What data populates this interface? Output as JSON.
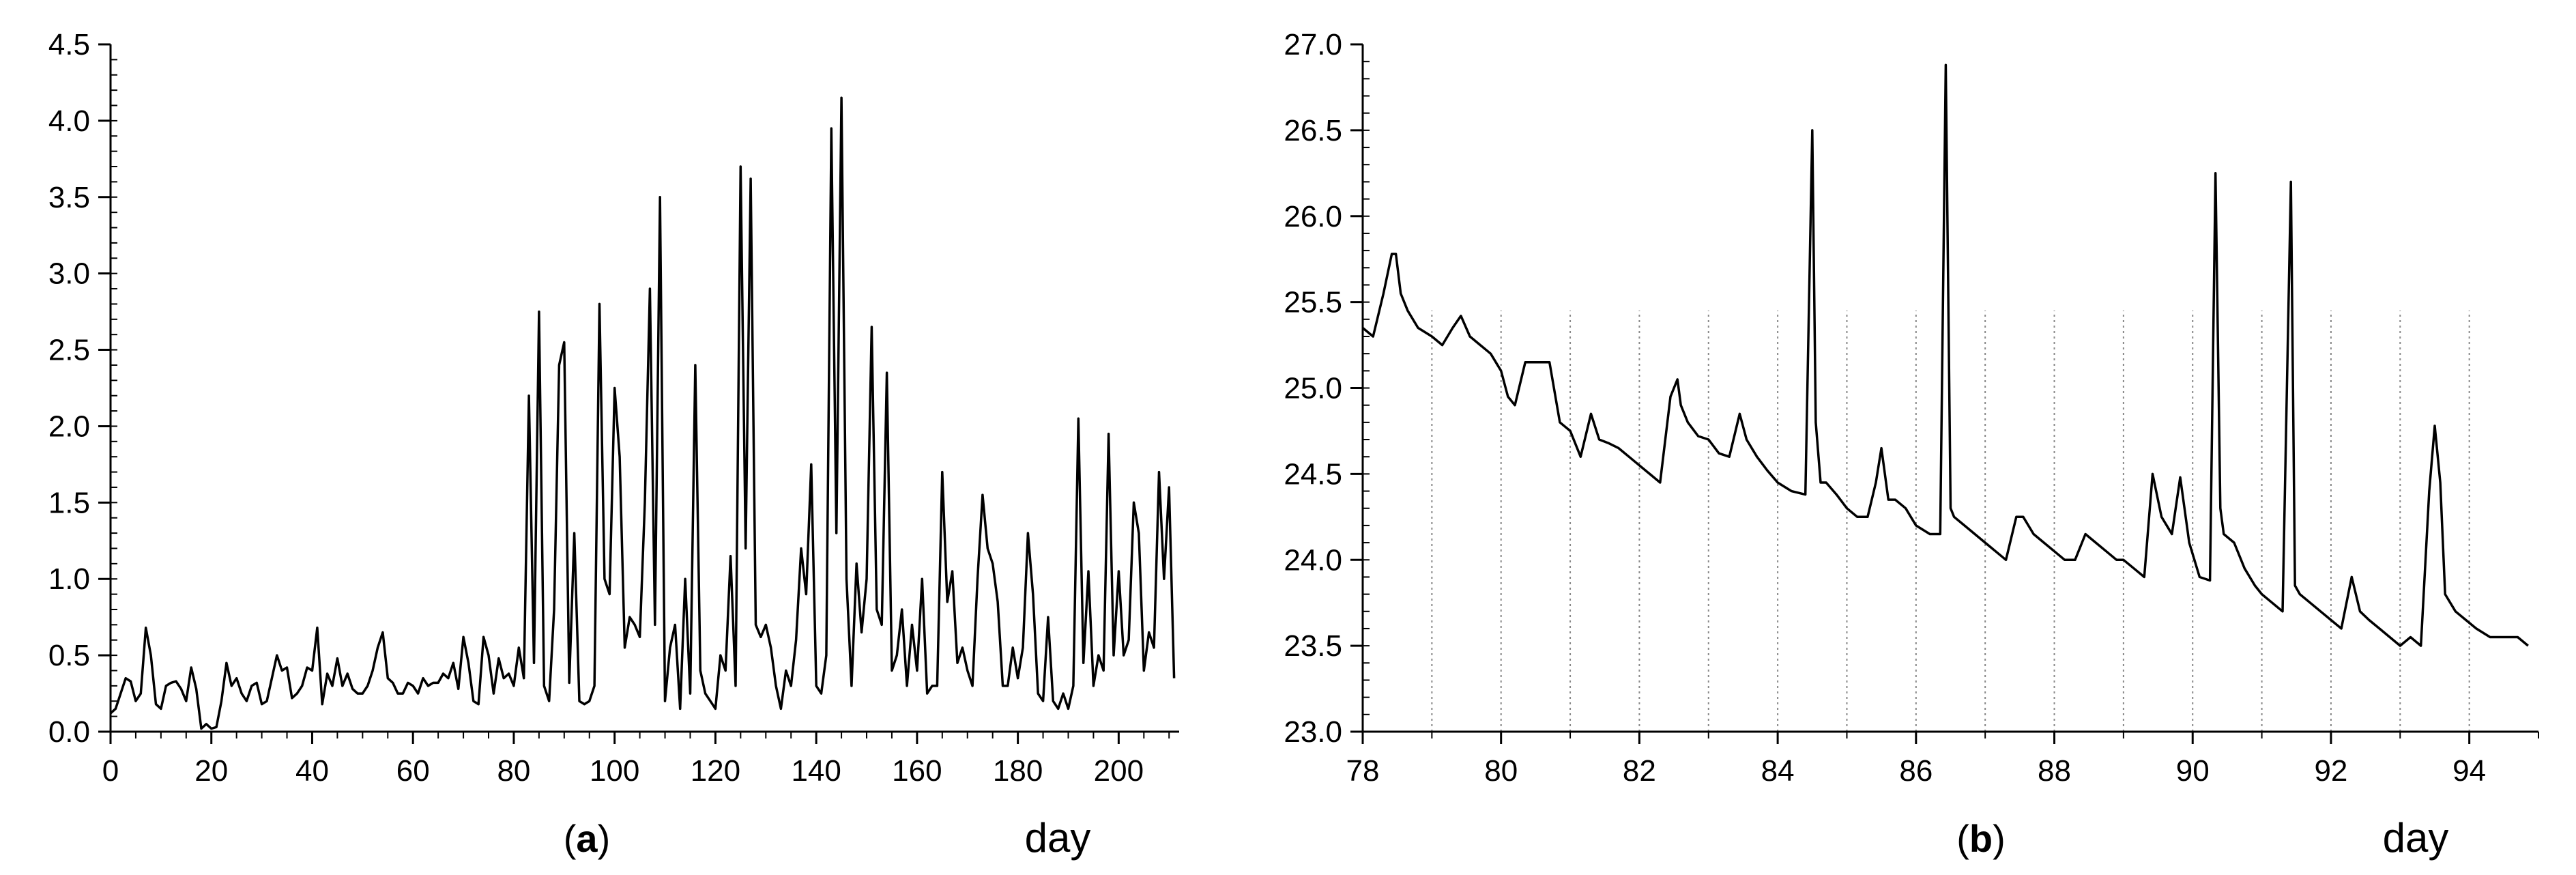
{
  "chart_data": [
    {
      "type": "line",
      "panel_label": "a",
      "xlabel": "day",
      "ylabel": "",
      "xlim": [
        0,
        212
      ],
      "ylim": [
        0,
        4.5
      ],
      "x_ticks": [
        "0",
        "20",
        "40",
        "60",
        "80",
        "100",
        "120",
        "140",
        "160",
        "180",
        "200"
      ],
      "y_ticks": [
        "0.0",
        "0.5",
        "1.0",
        "1.5",
        "2.0",
        "2.5",
        "3.0",
        "3.5",
        "4.0",
        "4.5"
      ],
      "grid": false,
      "series": [
        {
          "x": [
            0,
            1,
            2,
            3,
            4,
            5,
            6,
            7,
            8,
            9,
            10,
            11,
            12,
            13,
            14,
            15,
            16,
            17,
            18,
            19,
            20,
            21,
            22,
            23,
            24,
            25,
            26,
            27,
            28,
            29,
            30,
            31,
            32,
            33,
            34,
            35,
            36,
            37,
            38,
            39,
            40,
            41,
            42,
            43,
            44,
            45,
            46,
            47,
            48,
            49,
            50,
            51,
            52,
            53,
            54,
            55,
            56,
            57,
            58,
            59,
            60,
            61,
            62,
            63,
            64,
            65,
            66,
            67,
            68,
            69,
            70,
            71,
            72,
            73,
            74,
            75,
            76,
            77,
            78,
            79,
            80,
            81,
            82,
            83,
            84,
            85,
            86,
            87,
            88,
            89,
            90,
            91,
            92,
            93,
            94,
            95,
            96,
            97,
            98,
            99,
            100,
            101,
            102,
            103,
            104,
            105,
            106,
            107,
            108,
            109,
            110,
            111,
            112,
            113,
            114,
            115,
            116,
            117,
            118,
            119,
            120,
            121,
            122,
            123,
            124,
            125,
            126,
            127,
            128,
            129,
            130,
            131,
            132,
            133,
            134,
            135,
            136,
            137,
            138,
            139,
            140,
            141,
            142,
            143,
            144,
            145,
            146,
            147,
            148,
            149,
            150,
            151,
            152,
            153,
            154,
            155,
            156,
            157,
            158,
            159,
            160,
            161,
            162,
            163,
            164,
            165,
            166,
            167,
            168,
            169,
            170,
            171,
            172,
            173,
            174,
            175,
            176,
            177,
            178,
            179,
            180,
            181,
            182,
            183,
            184,
            185,
            186,
            187,
            188,
            189,
            190,
            191,
            192,
            193,
            194,
            195,
            196,
            197,
            198,
            199,
            200,
            201,
            202,
            203,
            204,
            205,
            206,
            207,
            208,
            209,
            210,
            211
          ],
          "y": [
            0.12,
            0.15,
            0.25,
            0.35,
            0.33,
            0.2,
            0.25,
            0.68,
            0.5,
            0.18,
            0.15,
            0.3,
            0.32,
            0.33,
            0.28,
            0.2,
            0.42,
            0.28,
            0.02,
            0.05,
            0.02,
            0.03,
            0.2,
            0.45,
            0.3,
            0.35,
            0.25,
            0.2,
            0.3,
            0.32,
            0.18,
            0.2,
            0.35,
            0.5,
            0.4,
            0.42,
            0.22,
            0.25,
            0.3,
            0.42,
            0.4,
            0.68,
            0.18,
            0.38,
            0.3,
            0.48,
            0.3,
            0.38,
            0.28,
            0.25,
            0.25,
            0.3,
            0.4,
            0.55,
            0.65,
            0.35,
            0.32,
            0.25,
            0.25,
            0.32,
            0.3,
            0.25,
            0.35,
            0.3,
            0.32,
            0.32,
            0.38,
            0.35,
            0.45,
            0.28,
            0.62,
            0.45,
            0.2,
            0.18,
            0.62,
            0.5,
            0.25,
            0.48,
            0.35,
            0.38,
            0.3,
            0.55,
            0.35,
            2.2,
            0.45,
            2.75,
            0.3,
            0.2,
            0.8,
            2.4,
            2.55,
            0.32,
            1.3,
            0.2,
            0.18,
            0.2,
            0.3,
            2.8,
            1.0,
            0.9,
            2.25,
            1.8,
            0.55,
            0.75,
            0.7,
            0.62,
            1.5,
            2.9,
            0.7,
            3.5,
            0.2,
            0.55,
            0.7,
            0.15,
            1.0,
            0.25,
            2.4,
            0.4,
            0.25,
            0.2,
            0.15,
            0.5,
            0.4,
            1.15,
            0.3,
            3.7,
            1.2,
            3.62,
            0.7,
            0.62,
            0.7,
            0.55,
            0.3,
            0.15,
            0.4,
            0.3,
            0.6,
            1.2,
            0.9,
            1.75,
            0.3,
            0.25,
            0.5,
            3.95,
            1.3,
            4.15,
            1.0,
            0.3,
            1.1,
            0.65,
            1.0,
            2.65,
            0.8,
            0.7,
            2.35,
            0.4,
            0.5,
            0.8,
            0.3,
            0.7,
            0.4,
            1.0,
            0.25,
            0.3,
            0.3,
            1.7,
            0.85,
            1.05,
            0.45,
            0.55,
            0.4,
            0.3,
            1.0,
            1.55,
            1.2,
            1.1,
            0.85,
            0.3,
            0.3,
            0.55,
            0.35,
            0.55,
            1.3,
            0.9,
            0.25,
            0.2,
            0.75,
            0.2,
            0.15,
            0.25,
            0.15,
            0.3,
            2.05,
            0.45,
            1.05,
            0.3,
            0.5,
            0.4,
            1.95,
            0.5,
            1.05,
            0.5,
            0.6,
            1.5,
            1.3,
            0.4,
            0.65,
            0.55,
            1.7,
            1.0,
            1.6,
            0.35
          ]
        }
      ]
    },
    {
      "type": "line",
      "panel_label": "b",
      "xlabel": "day",
      "ylabel": "",
      "xlim": [
        78,
        95
      ],
      "ylim": [
        23.0,
        27.0
      ],
      "x_ticks": [
        "78",
        "80",
        "82",
        "84",
        "86",
        "88",
        "90",
        "92",
        "94"
      ],
      "y_ticks": [
        "23.0",
        "23.5",
        "24.0",
        "24.5",
        "25.0",
        "25.5",
        "26.0",
        "26.5",
        "27.0"
      ],
      "vertical_gridlines_at": [
        79,
        80,
        81,
        82,
        83,
        84,
        85,
        86,
        87,
        88,
        89,
        90,
        91,
        92,
        93,
        94
      ],
      "series": [
        {
          "x": [
            78.0,
            78.15,
            78.3,
            78.42,
            78.48,
            78.55,
            78.65,
            78.8,
            79.0,
            79.15,
            79.3,
            79.42,
            79.55,
            79.7,
            79.85,
            80.0,
            80.1,
            80.2,
            80.35,
            80.5,
            80.7,
            80.85,
            81.0,
            81.15,
            81.3,
            81.42,
            81.55,
            81.7,
            81.85,
            82.0,
            82.15,
            82.3,
            82.45,
            82.55,
            82.6,
            82.7,
            82.85,
            83.0,
            83.15,
            83.3,
            83.45,
            83.55,
            83.7,
            83.85,
            84.0,
            84.2,
            84.4,
            84.5,
            84.55,
            84.62,
            84.7,
            84.85,
            85.0,
            85.15,
            85.3,
            85.42,
            85.5,
            85.6,
            85.7,
            85.85,
            86.0,
            86.2,
            86.35,
            86.43,
            86.5,
            86.55,
            86.7,
            86.85,
            87.0,
            87.15,
            87.3,
            87.45,
            87.55,
            87.7,
            87.85,
            88.0,
            88.15,
            88.3,
            88.45,
            88.6,
            88.75,
            88.9,
            89.0,
            89.15,
            89.3,
            89.42,
            89.55,
            89.7,
            89.82,
            89.95,
            90.1,
            90.25,
            90.33,
            90.4,
            90.45,
            90.6,
            90.75,
            90.9,
            91.0,
            91.15,
            91.3,
            91.42,
            91.48,
            91.55,
            91.7,
            91.85,
            92.0,
            92.15,
            92.3,
            92.42,
            92.55,
            92.7,
            92.85,
            93.0,
            93.15,
            93.3,
            93.42,
            93.5,
            93.58,
            93.65,
            93.8,
            93.95,
            94.1,
            94.3,
            94.5,
            94.7,
            94.85
          ],
          "y": [
            25.35,
            25.3,
            25.55,
            25.78,
            25.78,
            25.55,
            25.45,
            25.35,
            25.3,
            25.25,
            25.35,
            25.42,
            25.3,
            25.25,
            25.2,
            25.1,
            24.95,
            24.9,
            25.15,
            25.15,
            25.15,
            24.8,
            24.75,
            24.6,
            24.85,
            24.7,
            24.68,
            24.65,
            24.6,
            24.55,
            24.5,
            24.45,
            24.95,
            25.05,
            24.9,
            24.8,
            24.72,
            24.7,
            24.62,
            24.6,
            24.85,
            24.7,
            24.6,
            24.52,
            24.45,
            24.4,
            24.38,
            26.5,
            24.8,
            24.45,
            24.45,
            24.38,
            24.3,
            24.25,
            24.25,
            24.45,
            24.65,
            24.35,
            24.35,
            24.3,
            24.2,
            24.15,
            24.15,
            26.88,
            24.3,
            24.25,
            24.2,
            24.15,
            24.1,
            24.05,
            24.0,
            24.25,
            24.25,
            24.15,
            24.1,
            24.05,
            24.0,
            24.0,
            24.15,
            24.1,
            24.05,
            24.0,
            24.0,
            23.95,
            23.9,
            24.5,
            24.25,
            24.15,
            24.48,
            24.1,
            23.9,
            23.88,
            26.25,
            24.3,
            24.15,
            24.1,
            23.95,
            23.85,
            23.8,
            23.75,
            23.7,
            26.2,
            23.85,
            23.8,
            23.75,
            23.7,
            23.65,
            23.6,
            23.9,
            23.7,
            23.65,
            23.6,
            23.55,
            23.5,
            23.55,
            23.5,
            24.4,
            24.78,
            24.45,
            23.8,
            23.7,
            23.65,
            23.6,
            23.55,
            23.55,
            23.55,
            23.5
          ]
        }
      ]
    }
  ]
}
